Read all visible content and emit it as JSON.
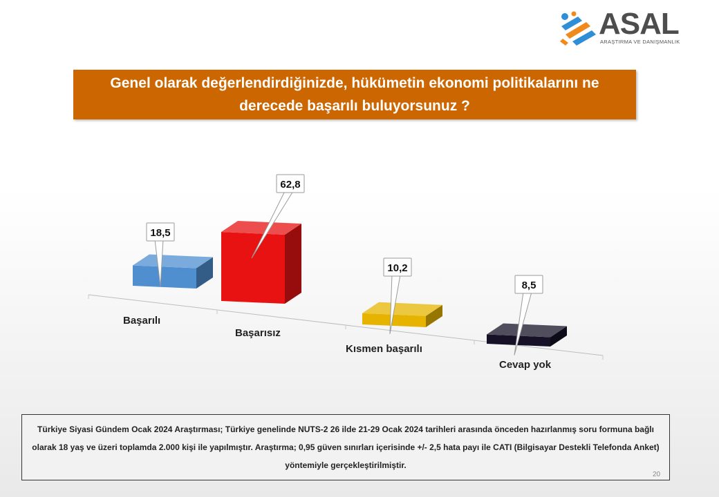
{
  "brand": {
    "name": "ASAL",
    "tagline": "ARAŞTIRMA VE DANIŞMANLIK",
    "colors": {
      "blue": "#2f8fd6",
      "orange": "#f08a1d",
      "text": "#4d4d4d"
    }
  },
  "title": "Genel olarak değerlendirdiğinizde, hükümetin ekonomi politikalarını ne derecede başarılı buluyorsunuz ?",
  "chart_data": {
    "type": "bar",
    "style": "3d",
    "categories": [
      "Başarılı",
      "Başarısız",
      "Kısmen başarılı",
      "Cevap yok"
    ],
    "values": [
      18.5,
      62.8,
      10.2,
      8.5
    ],
    "value_labels": [
      "18,5",
      "62,8",
      "10,2",
      "8,5"
    ],
    "colors": [
      "#4f8fd0",
      "#e81212",
      "#e6b400",
      "#161126"
    ],
    "title": "",
    "xlabel": "",
    "ylabel": "",
    "grid": false,
    "legend": "none"
  },
  "note": "Türkiye Siyasi Gündem Ocak 2024 Araştırması; Türkiye genelinde NUTS-2 26 ilde 21-29 Ocak 2024 tarihleri arasında önceden hazırlanmış soru formuna bağlı olarak 18 yaş ve üzeri toplamda 2.000 kişi ile yapılmıştır. Araştırma; 0,95 güven sınırları içerisinde +/- 2,5 hata payı ile CATI (Bilgisayar Destekli Telefonda Anket) yöntemiyle gerçekleştirilmiştir.",
  "page_number": "20"
}
